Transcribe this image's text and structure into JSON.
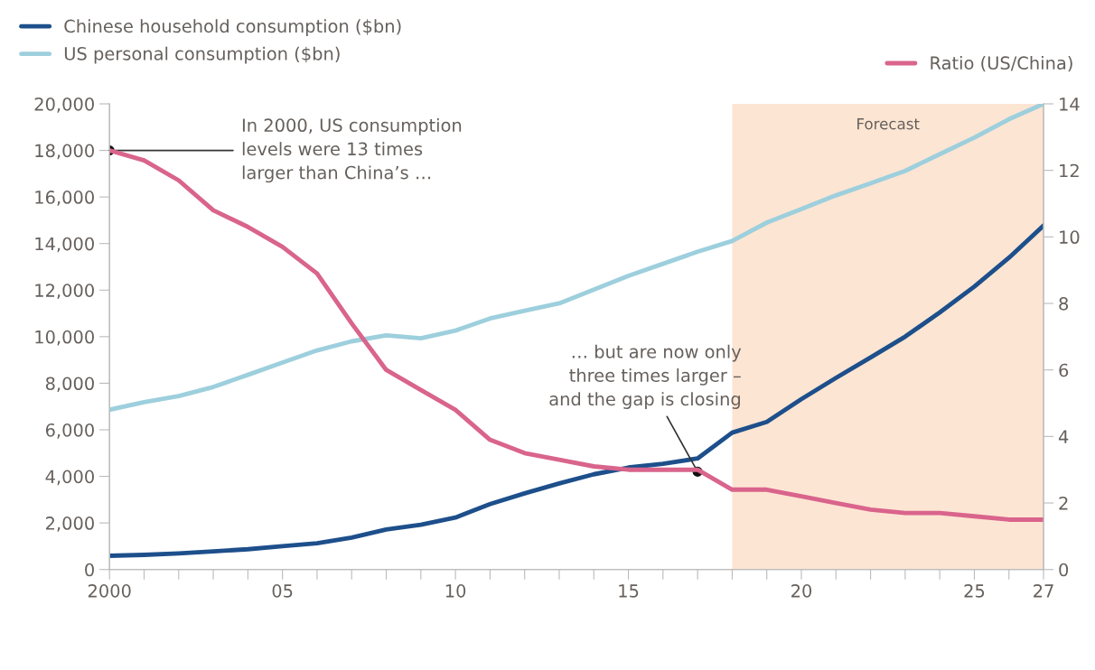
{
  "chart_data": {
    "type": "line",
    "x": [
      2000,
      2001,
      2002,
      2003,
      2004,
      2005,
      2006,
      2007,
      2008,
      2009,
      2010,
      2011,
      2012,
      2013,
      2014,
      2015,
      2016,
      2017,
      2018,
      2019,
      2020,
      2021,
      2022,
      2023,
      2024,
      2025,
      2026,
      2027
    ],
    "series": [
      {
        "name": "Chinese household consumption ($bn)",
        "color": "#1d4f8b",
        "values": [
          590,
          630,
          690,
          780,
          870,
          1000,
          1130,
          1370,
          1720,
          1920,
          2230,
          2810,
          3270,
          3700,
          4090,
          4380,
          4540,
          4770,
          5880,
          6340,
          7320,
          8230,
          9110,
          10000,
          11040,
          12150,
          13390,
          14770
        ]
      },
      {
        "name": "US personal consumption ($bn)",
        "color": "#9dcfdd",
        "values": [
          6860,
          7190,
          7450,
          7840,
          8360,
          8890,
          9410,
          9800,
          10060,
          9930,
          10260,
          10780,
          11110,
          11430,
          12020,
          12610,
          13130,
          13650,
          14110,
          14900,
          15480,
          16070,
          16590,
          17120,
          17840,
          18550,
          19340,
          20000
        ]
      },
      {
        "name": "Ratio (US/China)",
        "color": "#d9648c",
        "axis": "y2",
        "values": [
          12.6,
          12.3,
          11.7,
          10.8,
          10.3,
          9.7,
          8.9,
          7.4,
          6.0,
          5.4,
          4.8,
          3.9,
          3.5,
          3.3,
          3.1,
          3.0,
          3.0,
          3.0,
          2.4,
          2.4,
          2.2,
          2.0,
          1.8,
          1.7,
          1.7,
          1.6,
          1.5,
          1.5
        ]
      }
    ],
    "xlim": [
      2000,
      2027
    ],
    "xticks": [
      {
        "value": 2000,
        "label": "2000"
      },
      {
        "value": 2001,
        "label": null
      },
      {
        "value": 2002,
        "label": null
      },
      {
        "value": 2003,
        "label": null
      },
      {
        "value": 2004,
        "label": null
      },
      {
        "value": 2005,
        "label": "05"
      },
      {
        "value": 2006,
        "label": null
      },
      {
        "value": 2007,
        "label": null
      },
      {
        "value": 2008,
        "label": null
      },
      {
        "value": 2009,
        "label": null
      },
      {
        "value": 2010,
        "label": "10"
      },
      {
        "value": 2011,
        "label": null
      },
      {
        "value": 2012,
        "label": null
      },
      {
        "value": 2013,
        "label": null
      },
      {
        "value": 2014,
        "label": null
      },
      {
        "value": 2015,
        "label": "15"
      },
      {
        "value": 2016,
        "label": null
      },
      {
        "value": 2017,
        "label": null
      },
      {
        "value": 2018,
        "label": null
      },
      {
        "value": 2019,
        "label": null
      },
      {
        "value": 2020,
        "label": "20"
      },
      {
        "value": 2021,
        "label": null
      },
      {
        "value": 2022,
        "label": null
      },
      {
        "value": 2023,
        "label": null
      },
      {
        "value": 2024,
        "label": null
      },
      {
        "value": 2025,
        "label": "25"
      },
      {
        "value": 2026,
        "label": null
      },
      {
        "value": 2027,
        "label": "27"
      }
    ],
    "ylim": [
      0,
      20000
    ],
    "yticks": [
      0,
      {
        "value": 2000,
        "label": "2,000"
      },
      {
        "value": 4000,
        "label": "4,000"
      },
      {
        "value": 6000,
        "label": "6,000"
      },
      {
        "value": 8000,
        "label": "8,000"
      },
      {
        "value": 10000,
        "label": "10,000"
      },
      {
        "value": 12000,
        "label": "12,000"
      },
      {
        "value": 14000,
        "label": "14,000"
      },
      {
        "value": 16000,
        "label": "16,000"
      },
      {
        "value": 18000,
        "label": "18,000"
      },
      {
        "value": 20000,
        "label": "20,000"
      }
    ],
    "y2lim": [
      0,
      14
    ],
    "y2ticks": [
      0,
      2,
      4,
      6,
      8,
      10,
      12,
      14
    ],
    "bands": [
      {
        "axis": "x",
        "from": 2018,
        "to": 2027,
        "label": "Forecast",
        "color": "#fde5d3"
      }
    ],
    "annotations": [
      {
        "text": "In 2000, US consumption\nlevels were 13 times\nlarger than China’s …",
        "x": 2000,
        "y": 18000
      },
      {
        "text": "… but are now only\nthree times larger –\nand the gap is closing",
        "x": 2017,
        "y": 4200
      }
    ],
    "grid": false,
    "legend": "top",
    "line_style": "solid",
    "marker": "none"
  }
}
